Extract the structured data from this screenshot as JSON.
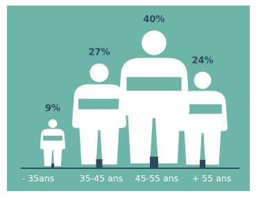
{
  "chart_data": {
    "type": "pictogram",
    "categories": [
      "- 35ans",
      "35-45 ans",
      "45-55 ans",
      "+ 55 ans"
    ],
    "values": [
      9,
      27,
      40,
      24
    ],
    "value_labels": [
      "9%",
      "27%",
      "40%",
      "24%"
    ],
    "color": "#ffffff"
  }
}
